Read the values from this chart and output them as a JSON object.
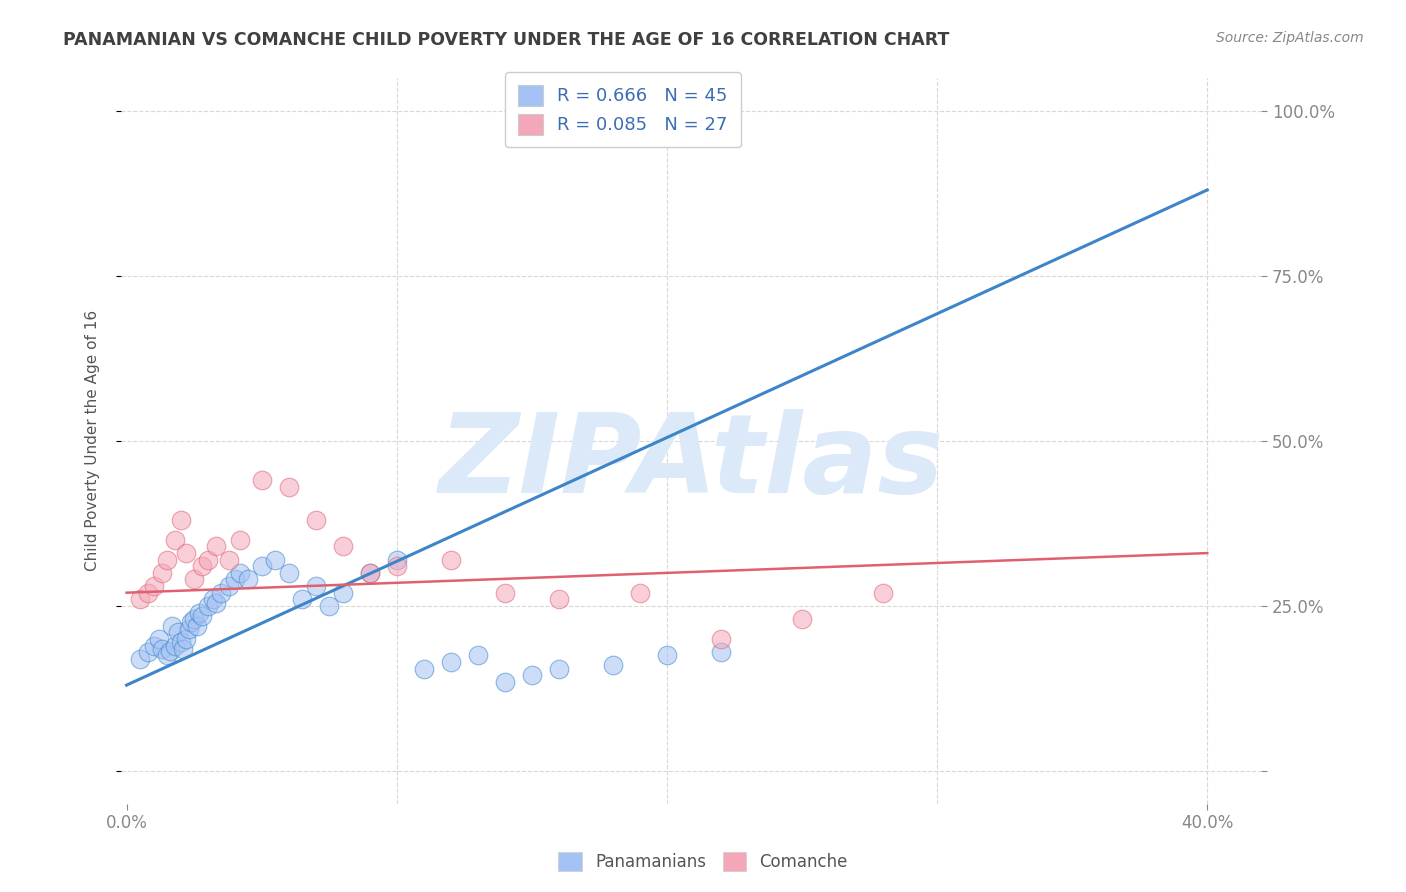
{
  "title": "PANAMANIAN VS COMANCHE CHILD POVERTY UNDER THE AGE OF 16 CORRELATION CHART",
  "source": "Source: ZipAtlas.com",
  "ylabel": "Child Poverty Under the Age of 16",
  "xlim": [
    -0.002,
    0.42
  ],
  "ylim": [
    -0.05,
    1.05
  ],
  "xticks": [
    0.0,
    0.4
  ],
  "xtick_labels": [
    "0.0%",
    "40.0%"
  ],
  "yticks": [
    0.0,
    0.25,
    0.5,
    0.75,
    1.0
  ],
  "ytick_labels_right": [
    "",
    "25.0%",
    "50.0%",
    "75.0%",
    "100.0%"
  ],
  "blue_R": "0.666",
  "blue_N": "45",
  "pink_R": "0.085",
  "pink_N": "27",
  "blue_color": "#a4c2f4",
  "pink_color": "#f4a7b9",
  "blue_line_color": "#3d85c8",
  "pink_line_color": "#e06070",
  "watermark": "ZIPAtlas",
  "watermark_color": "#dce9f8",
  "legend_label_blue": "R = 0.666   N = 45",
  "legend_label_pink": "R = 0.085   N = 27",
  "blue_scatter_x": [
    0.005,
    0.008,
    0.01,
    0.012,
    0.013,
    0.015,
    0.016,
    0.017,
    0.018,
    0.019,
    0.02,
    0.021,
    0.022,
    0.023,
    0.024,
    0.025,
    0.026,
    0.027,
    0.028,
    0.03,
    0.032,
    0.033,
    0.035,
    0.038,
    0.04,
    0.042,
    0.045,
    0.05,
    0.055,
    0.06,
    0.065,
    0.07,
    0.075,
    0.08,
    0.09,
    0.1,
    0.11,
    0.12,
    0.13,
    0.14,
    0.15,
    0.16,
    0.18,
    0.2,
    0.22
  ],
  "blue_scatter_y": [
    0.17,
    0.18,
    0.19,
    0.2,
    0.185,
    0.175,
    0.182,
    0.22,
    0.19,
    0.21,
    0.195,
    0.185,
    0.2,
    0.215,
    0.225,
    0.23,
    0.22,
    0.24,
    0.235,
    0.25,
    0.26,
    0.255,
    0.27,
    0.28,
    0.29,
    0.3,
    0.29,
    0.31,
    0.32,
    0.3,
    0.26,
    0.28,
    0.25,
    0.27,
    0.3,
    0.32,
    0.155,
    0.165,
    0.175,
    0.135,
    0.145,
    0.155,
    0.16,
    0.175,
    0.18
  ],
  "pink_scatter_x": [
    0.005,
    0.008,
    0.01,
    0.013,
    0.015,
    0.018,
    0.02,
    0.022,
    0.025,
    0.028,
    0.03,
    0.033,
    0.038,
    0.042,
    0.05,
    0.06,
    0.07,
    0.08,
    0.09,
    0.1,
    0.12,
    0.14,
    0.16,
    0.19,
    0.22,
    0.25,
    0.28
  ],
  "pink_scatter_y": [
    0.26,
    0.27,
    0.28,
    0.3,
    0.32,
    0.35,
    0.38,
    0.33,
    0.29,
    0.31,
    0.32,
    0.34,
    0.32,
    0.35,
    0.44,
    0.43,
    0.38,
    0.34,
    0.3,
    0.31,
    0.32,
    0.27,
    0.26,
    0.27,
    0.2,
    0.23,
    0.27
  ],
  "blue_line_x0": 0.0,
  "blue_line_y0": 0.13,
  "blue_line_x1": 0.4,
  "blue_line_y1": 0.88,
  "pink_line_x0": 0.0,
  "pink_line_y0": 0.27,
  "pink_line_x1": 0.4,
  "pink_line_y1": 0.33,
  "bg_color": "#ffffff",
  "grid_color": "#d8d8d8",
  "title_color": "#404040",
  "axis_label_color": "#555555",
  "tick_color": "#888888"
}
